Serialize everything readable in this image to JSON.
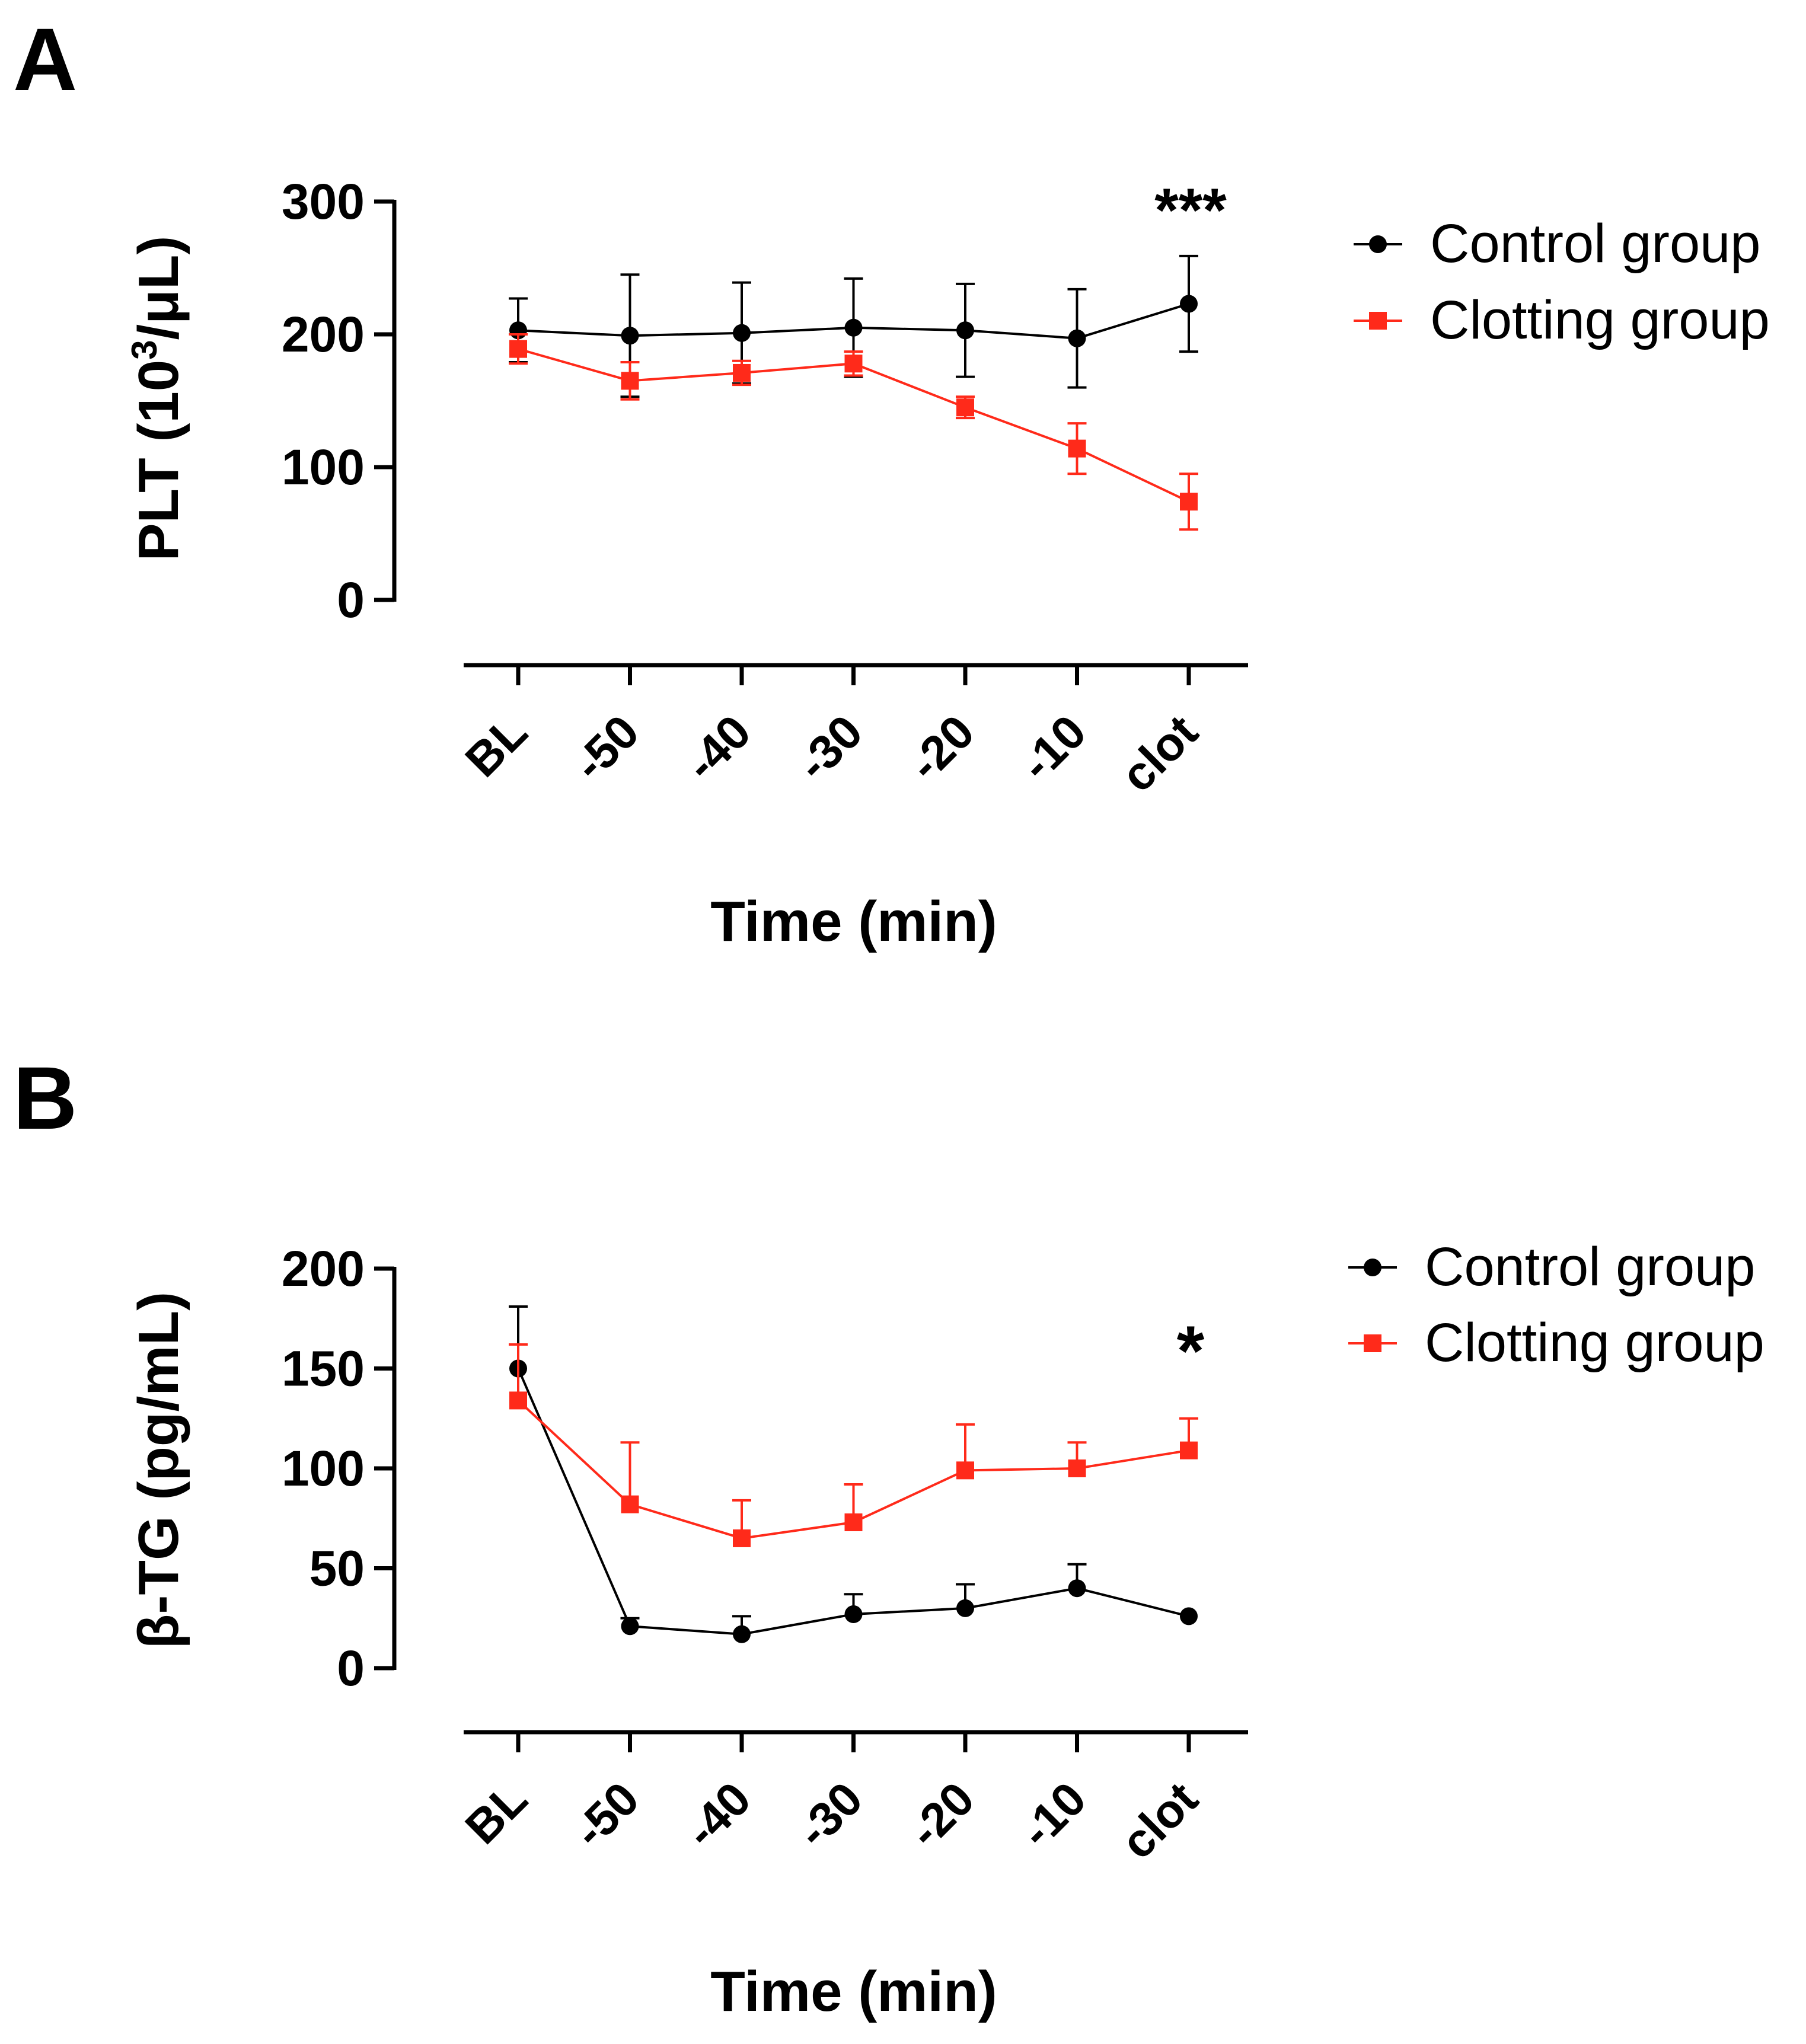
{
  "panels": [
    {
      "letter": "A",
      "significance": "***",
      "ylabel_main": "PLT (10",
      "ylabel_sup": "3",
      "ylabel_tail": "/μL)"
    },
    {
      "letter": "B",
      "significance": "*",
      "ylabel_main": "β-TG (pg/mL)",
      "ylabel_sup": "",
      "ylabel_tail": ""
    }
  ],
  "chart_data": [
    {
      "type": "line",
      "title": "",
      "xlabel": "Time (min)",
      "ylabel": "PLT (10³/μL)",
      "categories": [
        "BL",
        "-50",
        "-40",
        "-30",
        "-20",
        "-10",
        "clot"
      ],
      "ylim": [
        0,
        300
      ],
      "yticks": [
        0,
        100,
        200,
        300
      ],
      "grid": false,
      "legend_position": "top-right",
      "annotations": [
        {
          "text": "***",
          "category": "clot"
        }
      ],
      "series": [
        {
          "name": "Control group",
          "color": "#000000",
          "marker": "circle",
          "values": [
            203,
            199,
            201,
            205,
            203,
            197,
            223
          ],
          "errors": [
            24,
            46,
            38,
            37,
            35,
            37,
            36
          ]
        },
        {
          "name": "Clotting group",
          "color": "#ff2a1a",
          "marker": "square",
          "values": [
            189,
            165,
            171,
            178,
            145,
            114,
            74
          ],
          "errors": [
            11,
            14,
            9,
            9,
            8,
            19,
            21
          ]
        }
      ]
    },
    {
      "type": "line",
      "title": "",
      "xlabel": "Time (min)",
      "ylabel": "β-TG (pg/mL)",
      "categories": [
        "BL",
        "-50",
        "-40",
        "-30",
        "-20",
        "-10",
        "clot"
      ],
      "ylim": [
        0,
        200
      ],
      "yticks": [
        0,
        50,
        100,
        150,
        200
      ],
      "grid": false,
      "legend_position": "top-right",
      "annotations": [
        {
          "text": "*",
          "category": "clot"
        }
      ],
      "series": [
        {
          "name": "Control group",
          "color": "#000000",
          "marker": "circle",
          "values": [
            150,
            21,
            17,
            27,
            30,
            40,
            26
          ],
          "errors": [
            31,
            4,
            9,
            10,
            12,
            12,
            0
          ]
        },
        {
          "name": "Clotting group",
          "color": "#ff2a1a",
          "marker": "square",
          "values": [
            134,
            82,
            65,
            73,
            99,
            100,
            109
          ],
          "errors": [
            28,
            31,
            19,
            19,
            23,
            13,
            16
          ]
        }
      ]
    }
  ]
}
